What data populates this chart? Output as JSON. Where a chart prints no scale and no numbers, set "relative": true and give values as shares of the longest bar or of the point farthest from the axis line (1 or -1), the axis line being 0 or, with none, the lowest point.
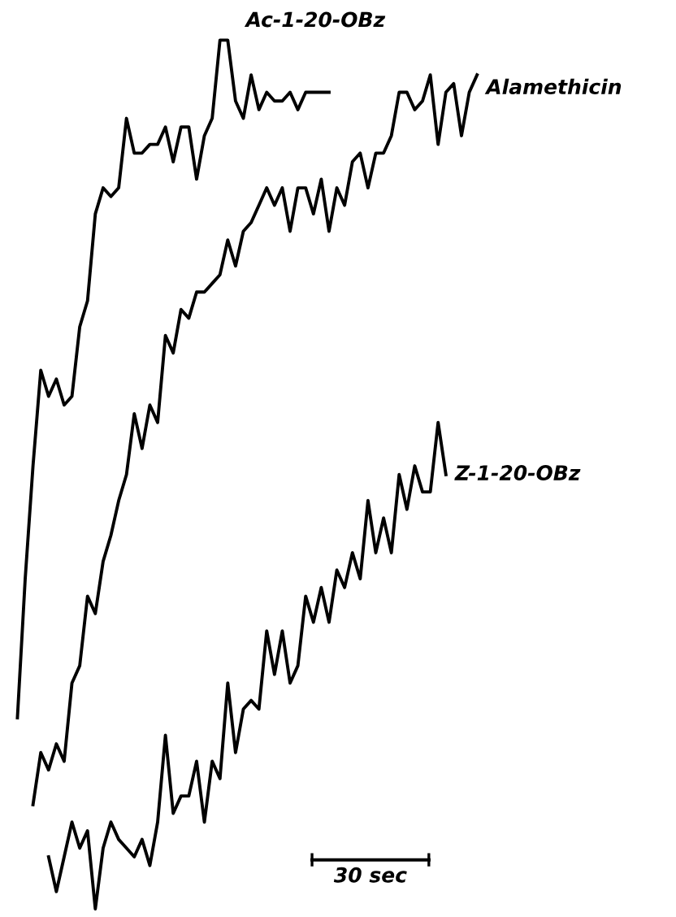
{
  "chart_data": {
    "type": "line",
    "relative": true,
    "legend": false,
    "marker": "none",
    "line_style": "solid",
    "categories": [
      null,
      null,
      null,
      null,
      null,
      null,
      null,
      null,
      null,
      null,
      null,
      null,
      null,
      null,
      null,
      null,
      null,
      null,
      null,
      null,
      null,
      null,
      null,
      null,
      null,
      null,
      null,
      null,
      null,
      null,
      null,
      null,
      null,
      null,
      null,
      null,
      null,
      null,
      null,
      null,
      null,
      null,
      null,
      null,
      null,
      null,
      null,
      null,
      null,
      null,
      null,
      null,
      null,
      null,
      null,
      null,
      null,
      null,
      null,
      null
    ],
    "series": [
      {
        "name": "Ac-1-20-OBz",
        "color": "#000000",
        "values": [
          0.22,
          0.38,
          0.51,
          0.62,
          0.59,
          0.61,
          0.58,
          0.59,
          0.67,
          0.7,
          0.8,
          0.83,
          0.82,
          0.83,
          0.91,
          0.87,
          0.87,
          0.88,
          0.88,
          0.9,
          0.86,
          0.9,
          0.9,
          0.84,
          0.89,
          0.91,
          1.0,
          1.0,
          0.93,
          0.91,
          0.96,
          0.92,
          0.94,
          0.93,
          0.93,
          0.94,
          0.92,
          0.94,
          0.94,
          0.94,
          0.94,
          null,
          null,
          null,
          null,
          null,
          null,
          null,
          null,
          null,
          null,
          null,
          null,
          null,
          null,
          null,
          null,
          null,
          null,
          null
        ]
      },
      {
        "name": "Alamethicin",
        "color": "#000000",
        "values": [
          null,
          null,
          0.12,
          0.18,
          0.16,
          0.19,
          0.17,
          0.26,
          0.28,
          0.36,
          0.34,
          0.4,
          0.43,
          0.47,
          0.5,
          0.57,
          0.53,
          0.58,
          0.56,
          0.66,
          0.64,
          0.69,
          0.68,
          0.71,
          0.71,
          0.72,
          0.73,
          0.77,
          0.74,
          0.78,
          0.79,
          0.81,
          0.83,
          0.81,
          0.83,
          0.78,
          0.83,
          0.83,
          0.8,
          0.84,
          0.78,
          0.83,
          0.81,
          0.86,
          0.87,
          0.83,
          0.87,
          0.87,
          0.89,
          0.94,
          0.94,
          0.92,
          0.93,
          0.96,
          0.88,
          0.94,
          0.95,
          0.89,
          0.94,
          0.96
        ]
      },
      {
        "name": "Z-1-20-OBz",
        "color": "#000000",
        "values": [
          null,
          null,
          null,
          null,
          0.06,
          0.02,
          0.06,
          0.1,
          0.07,
          0.09,
          0.0,
          0.07,
          0.1,
          0.08,
          0.07,
          0.06,
          0.08,
          0.05,
          0.1,
          0.2,
          0.11,
          0.13,
          0.13,
          0.17,
          0.1,
          0.17,
          0.15,
          0.26,
          0.18,
          0.23,
          0.24,
          0.23,
          0.32,
          0.27,
          0.32,
          0.26,
          0.28,
          0.36,
          0.33,
          0.37,
          0.33,
          0.39,
          0.37,
          0.41,
          0.38,
          0.47,
          0.41,
          0.45,
          0.41,
          0.5,
          0.46,
          0.51,
          0.48,
          0.48,
          0.56,
          0.5,
          null,
          null,
          null,
          null
        ]
      }
    ],
    "annotations": [
      "30 sec"
    ]
  }
}
